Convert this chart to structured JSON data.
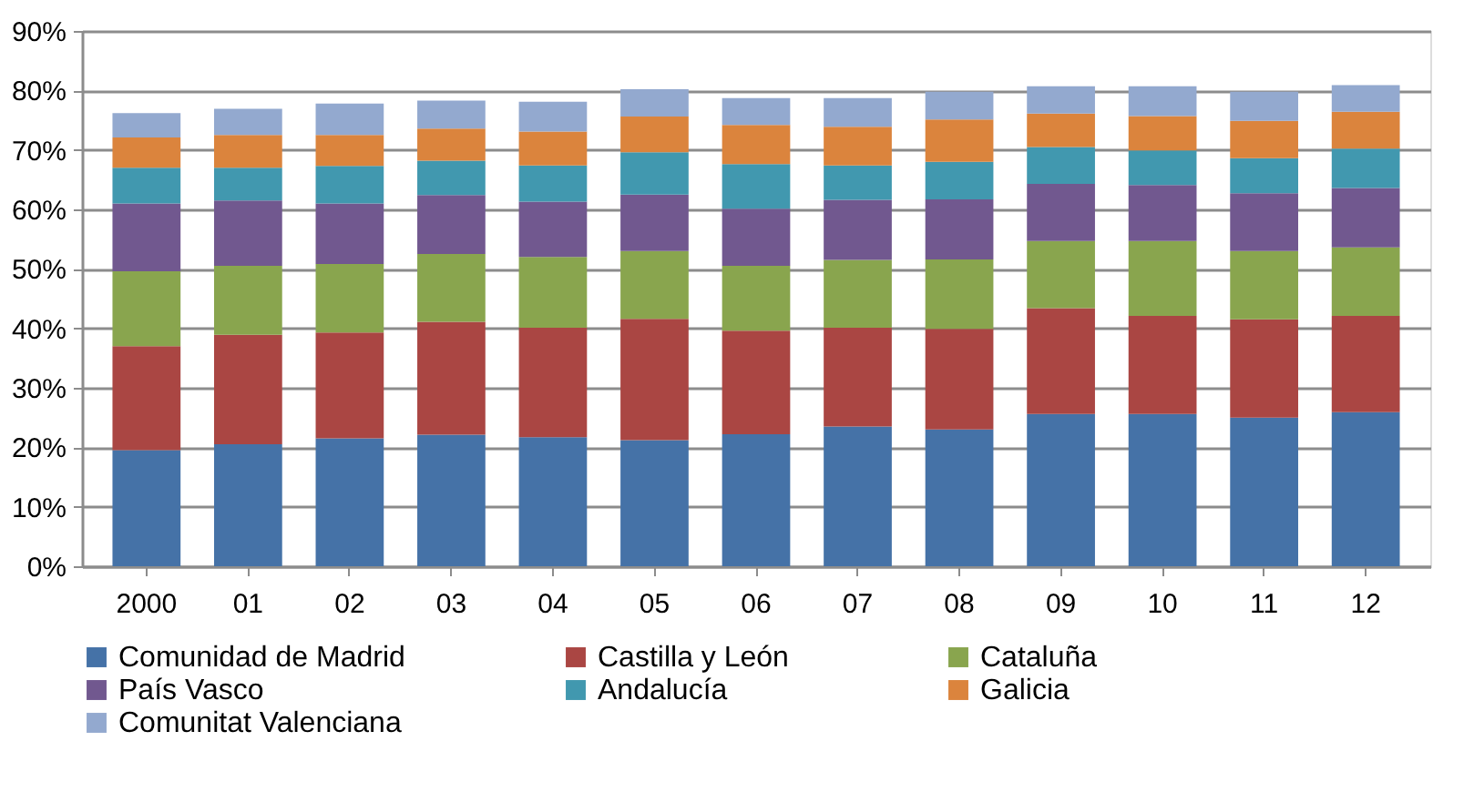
{
  "chart_data": {
    "type": "bar",
    "stacked": true,
    "categories": [
      "2000",
      "01",
      "02",
      "03",
      "04",
      "05",
      "06",
      "07",
      "08",
      "09",
      "10",
      "11",
      "12"
    ],
    "series": [
      {
        "name": "Comunidad de Madrid",
        "color": "#4572a7",
        "values": [
          19.5,
          20.5,
          21.5,
          22.1,
          21.7,
          21.2,
          22.2,
          23.5,
          23.0,
          25.6,
          25.6,
          25.0,
          25.9
        ]
      },
      {
        "name": "Castilla y León",
        "color": "#aa4643",
        "values": [
          17.5,
          18.4,
          17.8,
          19.0,
          18.4,
          20.4,
          17.4,
          16.6,
          16.9,
          17.8,
          16.5,
          16.5,
          16.2
        ]
      },
      {
        "name": "Cataluña",
        "color": "#89a54e",
        "values": [
          12.6,
          11.6,
          11.5,
          11.4,
          11.9,
          11.4,
          10.9,
          11.4,
          11.7,
          11.3,
          12.6,
          11.5,
          11.5
        ]
      },
      {
        "name": "País Vasco",
        "color": "#71588f",
        "values": [
          11.4,
          11.0,
          10.2,
          9.9,
          9.3,
          9.5,
          9.6,
          10.1,
          10.1,
          9.6,
          9.4,
          9.7,
          10.0
        ]
      },
      {
        "name": "Andalucía",
        "color": "#4198af",
        "values": [
          6.0,
          5.5,
          6.3,
          5.8,
          6.1,
          7.1,
          7.5,
          5.8,
          6.3,
          6.2,
          5.8,
          5.9,
          6.6
        ]
      },
      {
        "name": "Galicia",
        "color": "#db843d",
        "values": [
          5.1,
          5.5,
          5.2,
          5.4,
          5.7,
          6.0,
          6.6,
          6.5,
          7.1,
          5.6,
          5.8,
          6.3,
          6.2
        ]
      },
      {
        "name": "Comunitat Valenciana",
        "color": "#93a9cf",
        "values": [
          4.1,
          4.4,
          5.3,
          4.7,
          5.0,
          4.6,
          4.5,
          4.8,
          4.7,
          4.6,
          5.0,
          4.9,
          4.5
        ]
      }
    ],
    "ylim": [
      0,
      90
    ],
    "yticks": [
      {
        "value": 0,
        "label": "0%"
      },
      {
        "value": 10,
        "label": "10%"
      },
      {
        "value": 20,
        "label": "20%"
      },
      {
        "value": 30,
        "label": "30%"
      },
      {
        "value": 40,
        "label": "40%"
      },
      {
        "value": 50,
        "label": "50%"
      },
      {
        "value": 60,
        "label": "60%"
      },
      {
        "value": 70,
        "label": "70%"
      },
      {
        "value": 80,
        "label": "80%"
      },
      {
        "value": 90,
        "label": "90%"
      }
    ],
    "grid": "y",
    "legend": "bottom"
  }
}
